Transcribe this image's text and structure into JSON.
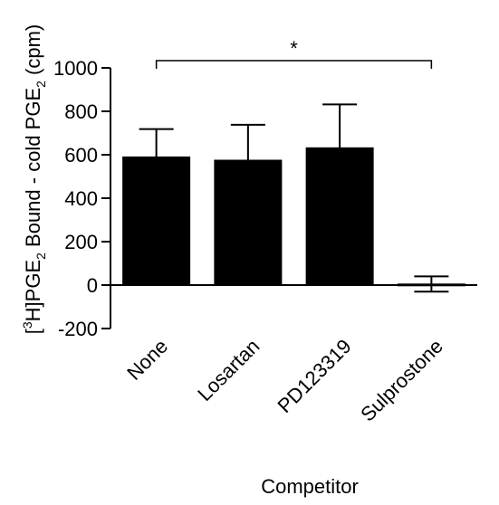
{
  "chart_data": {
    "type": "bar",
    "categories": [
      "None",
      "Losartan",
      "PD123319",
      "Sulprostone"
    ],
    "values": [
      590,
      575,
      632,
      5
    ],
    "error": [
      128,
      163,
      200,
      35
    ],
    "ylim": [
      -200,
      1000
    ],
    "yticks": [
      -200,
      0,
      200,
      400,
      600,
      800,
      1000
    ],
    "xlabel": "Competitor",
    "ylabel": {
      "t1": "[",
      "sup1": "3",
      "t2": "H]PGE",
      "sub1": "2",
      "t3": " Bound - cold PGE",
      "sub2": "2",
      "t4": " (cpm)"
    },
    "significance": {
      "from": "None",
      "to": "Sulprostone",
      "label": "*"
    },
    "bar_color": "#000000"
  }
}
